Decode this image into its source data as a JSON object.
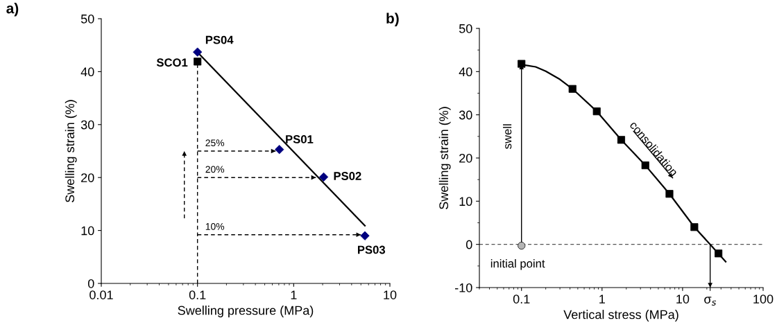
{
  "chart_data": [
    {
      "type": "scatter",
      "title": "a)",
      "xlabel": "Swelling pressure (MPa)",
      "ylabel": "Swelling strain (%)",
      "log": "x",
      "xlim": [
        0.01,
        10
      ],
      "xticks": [
        0.01,
        0.1,
        1,
        10
      ],
      "ylim": [
        0,
        50
      ],
      "yticks": [
        0,
        10,
        20,
        30,
        40,
        50
      ],
      "grid": false,
      "legend": false,
      "series": [
        {
          "type": "line",
          "color": "#000000",
          "x": [
            0.1,
            0.1
          ],
          "values": [
            0,
            41.9
          ],
          "line_style": "dashed",
          "marker": "none"
        },
        {
          "type": "line",
          "color": "#000000",
          "x": [
            0.1,
            0.65
          ],
          "values": [
            25,
            25
          ],
          "line_style": "dashed",
          "marker": "none"
        },
        {
          "type": "line",
          "color": "#000000",
          "x": [
            0.1,
            1.7
          ],
          "values": [
            20,
            20
          ],
          "line_style": "dashed",
          "marker": "none"
        },
        {
          "type": "line",
          "color": "#000000",
          "x": [
            0.1,
            5.0
          ],
          "values": [
            9.2,
            9.2
          ],
          "line_style": "dashed",
          "marker": "none"
        },
        {
          "type": "line",
          "color": "#000000",
          "x": [
            0.073,
            0.073
          ],
          "values": [
            12.3,
            25
          ],
          "line_style": "dashed",
          "marker": "none"
        },
        {
          "type": "line",
          "color": "#000000",
          "x": [
            0.106,
            5.5
          ],
          "values": [
            43.2,
            10.9
          ],
          "line_style": "solid",
          "marker": "none"
        },
        {
          "color": "#000000",
          "x": [
            0.1
          ],
          "values": [
            41.9
          ],
          "marker": "square"
        },
        {
          "color": "#00007f",
          "x": [
            0.1,
            0.71,
            2.05,
            5.5
          ],
          "values": [
            43.7,
            25.3,
            20.1,
            9.0
          ],
          "marker": "diamond"
        }
      ],
      "annotations": [
        {
          "text": "PS04",
          "x": 0.1,
          "y": 43.7
        },
        {
          "text": "SCO1",
          "x": 0.1,
          "y": 41.9
        },
        {
          "text": "PS01",
          "x": 0.71,
          "y": 25.3
        },
        {
          "text": "PS02",
          "x": 2.05,
          "y": 20.1
        },
        {
          "text": "PS03",
          "x": 5.5,
          "y": 9.0
        },
        {
          "text": "25%",
          "x": 0.1,
          "y": 25
        },
        {
          "text": "20%",
          "x": 0.1,
          "y": 20
        },
        {
          "text": "10%",
          "x": 0.1,
          "y": 9.2
        }
      ]
    },
    {
      "type": "scatter",
      "title": "b)",
      "xlabel": "Vertical stress (MPa)",
      "ylabel": "Swelling strain (%)",
      "log": "x",
      "xlim": [
        0.03,
        100
      ],
      "xticks": [
        0.1,
        1,
        10,
        {
          "value": 22,
          "label": "σ$_{s}$"
        },
        100
      ],
      "ylim": [
        -10,
        50
      ],
      "yticks": [
        -10,
        0,
        10,
        20,
        30,
        40,
        50
      ],
      "grid": false,
      "legend": false,
      "ref_lines": [
        {
          "axis": "y",
          "value": 0,
          "label": null,
          "color": "#555555",
          "line_style": "dashed"
        }
      ],
      "series": [
        {
          "type": "line",
          "color": "#000000",
          "x": [
            0.1,
            0.15,
            0.2,
            0.3,
            0.43,
            0.86,
            1.73,
            3.45,
            6.87,
            14,
            22,
            34.3
          ],
          "values": [
            41.6,
            41.1,
            40.1,
            38.2,
            36.0,
            30.8,
            24.2,
            18.3,
            11.7,
            4.0,
            0,
            -4.0
          ],
          "line_style": "solid",
          "marker": "none"
        },
        {
          "type": "line",
          "color": "#000000",
          "x": [
            0.1,
            0.1
          ],
          "values": [
            0,
            41.6
          ],
          "line_style": "solid",
          "marker": "none"
        },
        {
          "type": "line",
          "color": "#000000",
          "x": [
            22,
            22
          ],
          "values": [
            0,
            -10
          ],
          "line_style": "solid",
          "marker": "none"
        },
        {
          "type": "line",
          "color": "#000000",
          "x": [
            2.46,
            7.53
          ],
          "values": [
            26.2,
            15.4
          ],
          "line_style": "solid",
          "marker": "none"
        },
        {
          "color": "#000000",
          "x": [
            0.1,
            0.43,
            0.86,
            1.73,
            3.45,
            6.87,
            14,
            27.9
          ],
          "values": [
            41.8,
            36.0,
            30.8,
            24.2,
            18.3,
            11.7,
            4.0,
            -2.1
          ],
          "marker": "square"
        },
        {
          "color": "#b4b4b4",
          "x": [
            0.1
          ],
          "values": [
            -0.3
          ],
          "marker": "circle"
        }
      ],
      "annotations": [
        {
          "text": "swell",
          "x": 0.1,
          "y": 25
        },
        {
          "text": "consolidation",
          "x": 4.3,
          "y": 22
        },
        {
          "text": "initial point",
          "x": 0.1,
          "y": -0.3
        }
      ]
    }
  ]
}
